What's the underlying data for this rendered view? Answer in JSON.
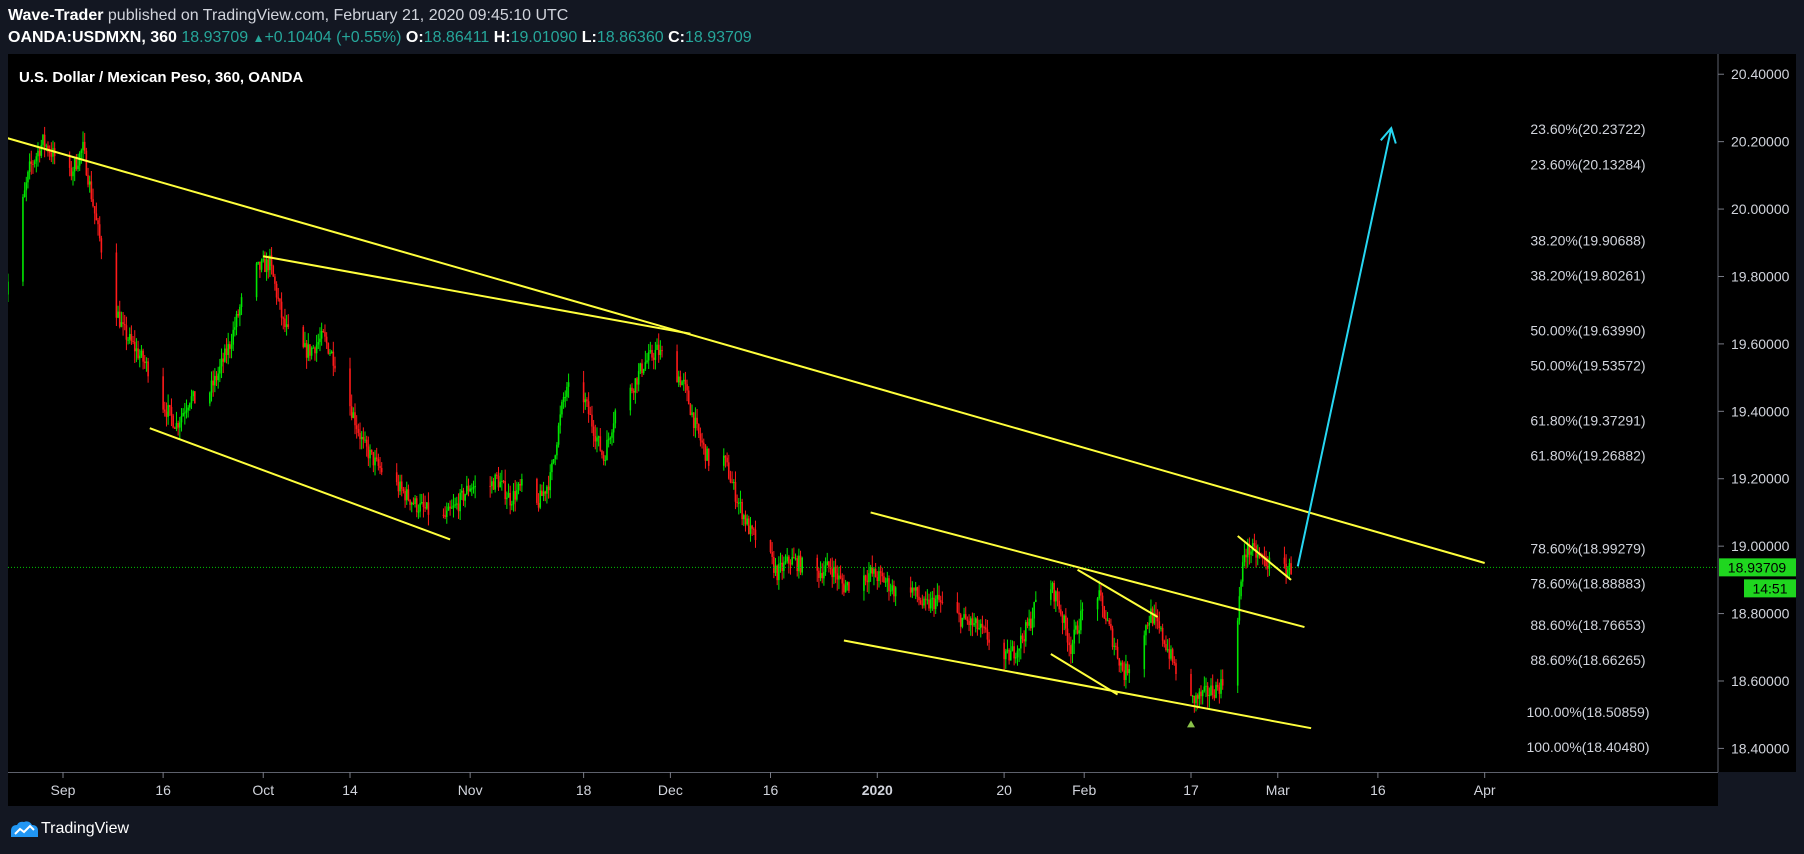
{
  "header": {
    "author": "Wave-Trader",
    "published": "published on TradingView.com, February 21, 2020 09:45:10 UTC",
    "symbol": "OANDA:USDMXN, 360",
    "last": "18.93709",
    "change_arrow": "▲",
    "change": "+0.10404 (+0.55%)",
    "o_label": "O:",
    "o_value": "18.86411",
    "h_label": "H:",
    "h_value": "19.01090",
    "l_label": "L:",
    "l_value": "18.86360",
    "c_label": "C:",
    "c_value": "18.93709"
  },
  "footer": {
    "brand": "TradingView",
    "logo_icon": "tradingview-logo-icon"
  },
  "colors": {
    "background": "#000000",
    "panel": "#131722",
    "up": "#00e600",
    "down": "#ff1a1a",
    "trendline": "#ffff3c",
    "projection": "#26d7f2",
    "price_line": "#00c800",
    "price_label": "#1fd61f"
  },
  "chart_data": {
    "type": "candlestick",
    "title": "U.S. Dollar / Mexican Peso, 360, OANDA",
    "ylim": [
      18.33,
      20.46
    ],
    "y_ticks": [
      "20.40000",
      "20.20000",
      "20.00000",
      "19.80000",
      "19.60000",
      "19.40000",
      "19.20000",
      "19.00000",
      "18.80000",
      "18.60000",
      "18.40000"
    ],
    "x_ticks": [
      {
        "label": "Sep",
        "date": "2019-09-01"
      },
      {
        "label": "16",
        "date": "2019-09-16"
      },
      {
        "label": "Oct",
        "date": "2019-10-01"
      },
      {
        "label": "14",
        "date": "2019-10-14"
      },
      {
        "label": "Nov",
        "date": "2019-11-01"
      },
      {
        "label": "18",
        "date": "2019-11-18"
      },
      {
        "label": "Dec",
        "date": "2019-12-01"
      },
      {
        "label": "16",
        "date": "2019-12-16"
      },
      {
        "label": "2020",
        "date": "2020-01-01"
      },
      {
        "label": "20",
        "date": "2020-01-20"
      },
      {
        "label": "Feb",
        "date": "2020-02-01"
      },
      {
        "label": "17",
        "date": "2020-02-17"
      },
      {
        "label": "Mar",
        "date": "2020-03-01"
      },
      {
        "label": "16",
        "date": "2020-03-16"
      },
      {
        "label": "Apr",
        "date": "2020-04-01"
      }
    ],
    "price_path": [
      [
        "2019-08-23",
        19.7
      ],
      [
        "2019-08-25",
        19.92
      ],
      [
        "2019-08-27",
        20.12
      ],
      [
        "2019-08-29",
        20.2
      ],
      [
        "2019-08-31",
        20.15
      ],
      [
        "2019-09-02",
        20.1
      ],
      [
        "2019-09-04",
        20.18
      ],
      [
        "2019-09-06",
        19.96
      ],
      [
        "2019-09-08",
        19.76
      ],
      [
        "2019-09-10",
        19.64
      ],
      [
        "2019-09-12",
        19.58
      ],
      [
        "2019-09-14",
        19.52
      ],
      [
        "2019-09-16",
        19.42
      ],
      [
        "2019-09-18",
        19.36
      ],
      [
        "2019-09-20",
        19.44
      ],
      [
        "2019-09-22",
        19.42
      ],
      [
        "2019-09-24",
        19.5
      ],
      [
        "2019-09-26",
        19.6
      ],
      [
        "2019-09-28",
        19.74
      ],
      [
        "2019-09-30",
        19.82
      ],
      [
        "2019-10-02",
        19.84
      ],
      [
        "2019-10-04",
        19.66
      ],
      [
        "2019-10-06",
        19.58
      ],
      [
        "2019-10-08",
        19.58
      ],
      [
        "2019-10-10",
        19.62
      ],
      [
        "2019-10-12",
        19.54
      ],
      [
        "2019-10-14",
        19.42
      ],
      [
        "2019-10-16",
        19.3
      ],
      [
        "2019-10-18",
        19.24
      ],
      [
        "2019-10-20",
        19.2
      ],
      [
        "2019-10-22",
        19.16
      ],
      [
        "2019-10-24",
        19.12
      ],
      [
        "2019-10-26",
        19.1
      ],
      [
        "2019-10-28",
        19.08
      ],
      [
        "2019-10-30",
        19.12
      ],
      [
        "2019-11-01",
        19.18
      ],
      [
        "2019-11-03",
        19.16
      ],
      [
        "2019-11-05",
        19.2
      ],
      [
        "2019-11-07",
        19.14
      ],
      [
        "2019-11-09",
        19.18
      ],
      [
        "2019-11-11",
        19.12
      ],
      [
        "2019-11-13",
        19.2
      ],
      [
        "2019-11-15",
        19.44
      ],
      [
        "2019-11-17",
        19.5
      ],
      [
        "2019-11-19",
        19.38
      ],
      [
        "2019-11-21",
        19.26
      ],
      [
        "2019-11-23",
        19.42
      ],
      [
        "2019-11-25",
        19.46
      ],
      [
        "2019-11-27",
        19.54
      ],
      [
        "2019-11-29",
        19.58
      ],
      [
        "2019-12-01",
        19.54
      ],
      [
        "2019-12-03",
        19.48
      ],
      [
        "2019-12-05",
        19.34
      ],
      [
        "2019-12-07",
        19.24
      ],
      [
        "2019-12-09",
        19.26
      ],
      [
        "2019-12-11",
        19.14
      ],
      [
        "2019-12-13",
        19.04
      ],
      [
        "2019-12-15",
        19.0
      ],
      [
        "2019-12-17",
        18.92
      ],
      [
        "2019-12-19",
        18.96
      ],
      [
        "2019-12-21",
        18.94
      ],
      [
        "2019-12-23",
        18.92
      ],
      [
        "2019-12-25",
        18.94
      ],
      [
        "2019-12-27",
        18.88
      ],
      [
        "2019-12-29",
        18.9
      ],
      [
        "2019-12-31",
        18.92
      ],
      [
        "2020-01-02",
        18.9
      ],
      [
        "2020-01-04",
        18.86
      ],
      [
        "2020-01-06",
        18.88
      ],
      [
        "2020-01-08",
        18.82
      ],
      [
        "2020-01-10",
        18.84
      ],
      [
        "2020-01-12",
        18.8
      ],
      [
        "2020-01-14",
        18.78
      ],
      [
        "2020-01-16",
        18.76
      ],
      [
        "2020-01-18",
        18.72
      ],
      [
        "2020-01-20",
        18.66
      ],
      [
        "2020-01-22",
        18.7
      ],
      [
        "2020-01-24",
        18.78
      ],
      [
        "2020-01-26",
        18.92
      ],
      [
        "2020-01-28",
        18.84
      ],
      [
        "2020-01-30",
        18.7
      ],
      [
        "2020-02-01",
        18.82
      ],
      [
        "2020-02-03",
        18.86
      ],
      [
        "2020-02-05",
        18.74
      ],
      [
        "2020-02-07",
        18.62
      ],
      [
        "2020-02-09",
        18.7
      ],
      [
        "2020-02-11",
        18.8
      ],
      [
        "2020-02-13",
        18.72
      ],
      [
        "2020-02-15",
        18.62
      ],
      [
        "2020-02-17",
        18.54
      ],
      [
        "2020-02-19",
        18.56
      ],
      [
        "2020-02-21",
        18.58
      ],
      [
        "2020-02-23",
        18.62
      ],
      [
        "2020-02-24",
        18.8
      ],
      [
        "2020-02-25",
        18.98
      ],
      [
        "2020-02-26",
        18.99
      ],
      [
        "2020-02-27",
        18.97
      ],
      [
        "2020-02-28",
        18.96
      ],
      [
        "2020-02-29",
        18.94
      ],
      [
        "2020-03-01",
        18.95
      ],
      [
        "2020-03-02",
        18.93
      ],
      [
        "2020-03-03",
        18.935
      ]
    ],
    "trendlines": [
      {
        "name": "main-downtrend-line",
        "from": [
          "2019-08-22",
          20.22
        ],
        "to": [
          "2020-04-01",
          18.95
        ]
      },
      {
        "name": "sep-dec-resistance-line",
        "from": [
          "2019-10-01",
          19.86
        ],
        "to": [
          "2019-12-04",
          19.63
        ]
      },
      {
        "name": "sep-oct-support-line",
        "from": [
          "2019-09-14",
          19.35
        ],
        "to": [
          "2019-10-29",
          19.02
        ]
      },
      {
        "name": "jan-channel-upper-line",
        "from": [
          "2019-12-31",
          19.1
        ],
        "to": [
          "2020-03-05",
          18.76
        ]
      },
      {
        "name": "jan-channel-lower-line",
        "from": [
          "2019-12-27",
          18.72
        ],
        "to": [
          "2020-03-06",
          18.46
        ]
      },
      {
        "name": "feb-wedge-upper-line",
        "from": [
          "2020-01-31",
          18.93
        ],
        "to": [
          "2020-02-12",
          18.79
        ]
      },
      {
        "name": "feb-wedge-lower-line",
        "from": [
          "2020-01-27",
          18.68
        ],
        "to": [
          "2020-02-06",
          18.56
        ]
      },
      {
        "name": "flag-upper-line",
        "from": [
          "2020-02-24",
          19.03
        ],
        "to": [
          "2020-03-03",
          18.9
        ]
      }
    ],
    "projection_arrow": {
      "from": [
        "2020-03-04",
        18.94
      ],
      "to": [
        "2020-03-18",
        20.24
      ]
    },
    "fib_levels": [
      {
        "label": "23.60%(20.23722)",
        "value": 20.23722
      },
      {
        "label": "23.60%(20.13284)",
        "value": 20.13284
      },
      {
        "label": "38.20%(19.90688)",
        "value": 19.90688
      },
      {
        "label": "38.20%(19.80261)",
        "value": 19.80261
      },
      {
        "label": "50.00%(19.63990)",
        "value": 19.6399
      },
      {
        "label": "50.00%(19.53572)",
        "value": 19.53572
      },
      {
        "label": "61.80%(19.37291)",
        "value": 19.37291
      },
      {
        "label": "61.80%(19.26882)",
        "value": 19.26882
      },
      {
        "label": "78.60%(18.99279)",
        "value": 18.99279
      },
      {
        "label": "78.60%(18.88883)",
        "value": 18.88883
      },
      {
        "label": "88.60%(18.76653)",
        "value": 18.76653
      },
      {
        "label": "88.60%(18.66265)",
        "value": 18.66265
      },
      {
        "label": "100.00%(18.50859)",
        "value": 18.50859
      },
      {
        "label": "100.00%(18.40480)",
        "value": 18.4048
      }
    ],
    "last_price": {
      "label": "18.93709",
      "value": 18.93709
    },
    "countdown": "14:51",
    "low_marker": {
      "date": "2020-02-17",
      "value": 18.51
    }
  }
}
